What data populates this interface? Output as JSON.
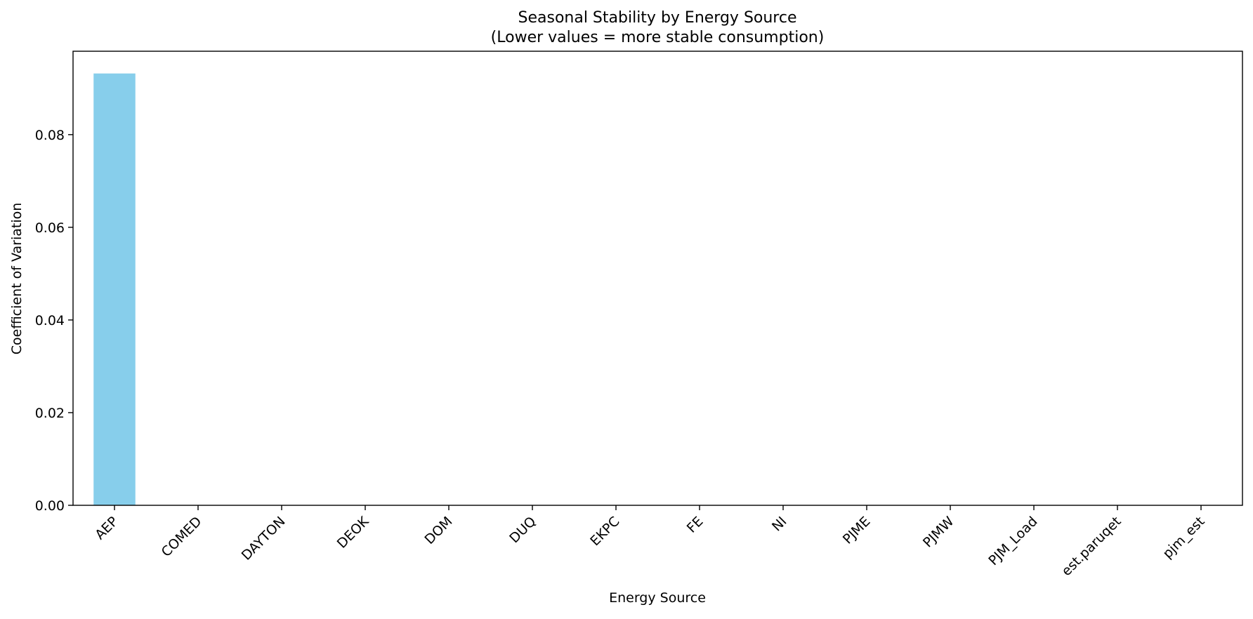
{
  "chart_data": {
    "type": "bar",
    "title": "Seasonal Stability by Energy Source",
    "subtitle": "(Lower values = more stable consumption)",
    "xlabel": "Energy Source",
    "ylabel": "Coefficient of Variation",
    "categories": [
      "AEP",
      "COMED",
      "DAYTON",
      "DEOK",
      "DOM",
      "DUQ",
      "EKPC",
      "FE",
      "NI",
      "PJME",
      "PJMW",
      "PJM_Load",
      "est.paruqet",
      "pjm_est"
    ],
    "values": [
      0.0932,
      0,
      0,
      0,
      0,
      0,
      0,
      0,
      0,
      0,
      0,
      0,
      0,
      0
    ],
    "ylim": [
      0,
      0.098
    ],
    "yticks": [
      0,
      0.02,
      0.04,
      0.06,
      0.08
    ],
    "ytick_labels": [
      "0.00",
      "0.02",
      "0.04",
      "0.06",
      "0.08"
    ],
    "grid": false,
    "legend": "none",
    "colors": {
      "bar": "#87ceeb",
      "axis": "#000000",
      "background": "#ffffff"
    }
  }
}
